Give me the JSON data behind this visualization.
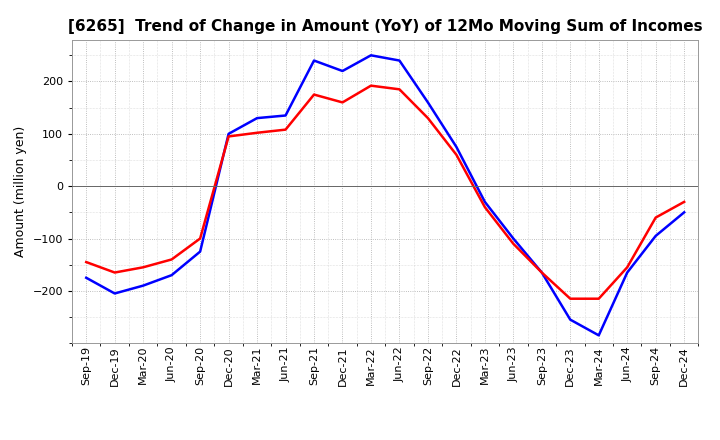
{
  "title": "[6265]  Trend of Change in Amount (YoY) of 12Mo Moving Sum of Incomes",
  "ylabel": "Amount (million yen)",
  "background_color": "#ffffff",
  "plot_background": "#ffffff",
  "x_labels": [
    "Sep-19",
    "Dec-19",
    "Mar-20",
    "Jun-20",
    "Sep-20",
    "Dec-20",
    "Mar-21",
    "Jun-21",
    "Sep-21",
    "Dec-21",
    "Mar-22",
    "Jun-22",
    "Sep-22",
    "Dec-22",
    "Mar-23",
    "Jun-23",
    "Sep-23",
    "Dec-23",
    "Mar-24",
    "Jun-24",
    "Sep-24",
    "Dec-24"
  ],
  "ordinary_income": [
    -175,
    -205,
    -190,
    -170,
    -125,
    100,
    130,
    135,
    240,
    220,
    250,
    240,
    160,
    75,
    -30,
    -100,
    -165,
    -255,
    -285,
    -165,
    -95,
    -50
  ],
  "net_income": [
    -145,
    -165,
    -155,
    -140,
    -100,
    95,
    102,
    108,
    175,
    160,
    192,
    185,
    130,
    60,
    -40,
    -110,
    -165,
    -215,
    -215,
    -155,
    -60,
    -30
  ],
  "ylim": [
    -300,
    280
  ],
  "yticks": [
    -200,
    -100,
    0,
    100,
    200
  ],
  "ordinary_color": "#0000ff",
  "net_color": "#ff0000",
  "line_width": 1.8,
  "title_fontsize": 11,
  "tick_fontsize": 8,
  "label_fontsize": 9,
  "legend_fontsize": 9
}
